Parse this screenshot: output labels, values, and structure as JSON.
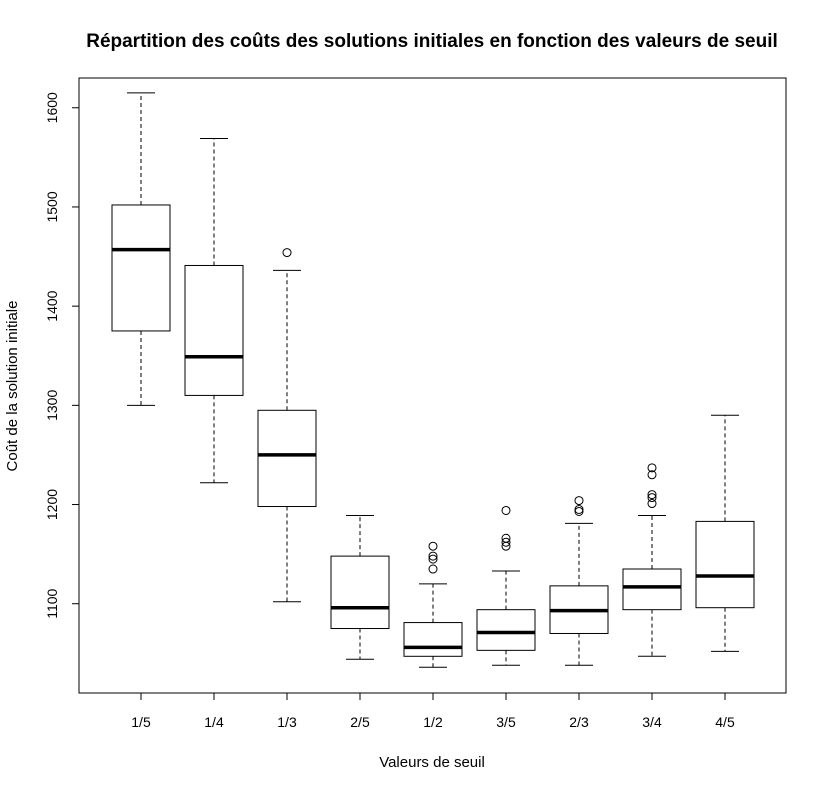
{
  "chart_data": {
    "type": "boxplot",
    "title": "Répartition des coûts des solutions initiales en fonction des valeurs de seuil",
    "xlabel": "Valeurs de seuil",
    "ylabel": "Coût de la solution initiale",
    "ylim": [
      1010,
      1630
    ],
    "y_ticks": [
      1100,
      1200,
      1300,
      1400,
      1500,
      1600
    ],
    "categories": [
      "1/5",
      "1/4",
      "1/3",
      "2/5",
      "1/2",
      "3/5",
      "2/3",
      "3/4",
      "4/5"
    ],
    "boxes": [
      {
        "category": "1/5",
        "whisker_low": 1300,
        "q1": 1375,
        "median": 1457,
        "q3": 1502,
        "whisker_high": 1615,
        "outliers": []
      },
      {
        "category": "1/4",
        "whisker_low": 1222,
        "q1": 1310,
        "median": 1349,
        "q3": 1441,
        "whisker_high": 1569,
        "outliers": []
      },
      {
        "category": "1/3",
        "whisker_low": 1102,
        "q1": 1198,
        "median": 1250,
        "q3": 1295,
        "whisker_high": 1436,
        "outliers": [
          1454
        ]
      },
      {
        "category": "2/5",
        "whisker_low": 1044,
        "q1": 1075,
        "median": 1096,
        "q3": 1148,
        "whisker_high": 1189,
        "outliers": []
      },
      {
        "category": "1/2",
        "whisker_low": 1036,
        "q1": 1047,
        "median": 1056,
        "q3": 1081,
        "whisker_high": 1120,
        "outliers": [
          1135,
          1145,
          1148,
          1158
        ]
      },
      {
        "category": "3/5",
        "whisker_low": 1038,
        "q1": 1053,
        "median": 1071,
        "q3": 1094,
        "whisker_high": 1133,
        "outliers": [
          1158,
          1162,
          1166,
          1194
        ]
      },
      {
        "category": "2/3",
        "whisker_low": 1038,
        "q1": 1070,
        "median": 1093,
        "q3": 1118,
        "whisker_high": 1181,
        "outliers": [
          1193,
          1195,
          1204
        ]
      },
      {
        "category": "3/4",
        "whisker_low": 1047,
        "q1": 1094,
        "median": 1117,
        "q3": 1135,
        "whisker_high": 1189,
        "outliers": [
          1201,
          1207,
          1210,
          1230,
          1237
        ]
      },
      {
        "category": "4/5",
        "whisker_low": 1052,
        "q1": 1096,
        "median": 1128,
        "q3": 1183,
        "whisker_high": 1290,
        "outliers": []
      }
    ]
  }
}
